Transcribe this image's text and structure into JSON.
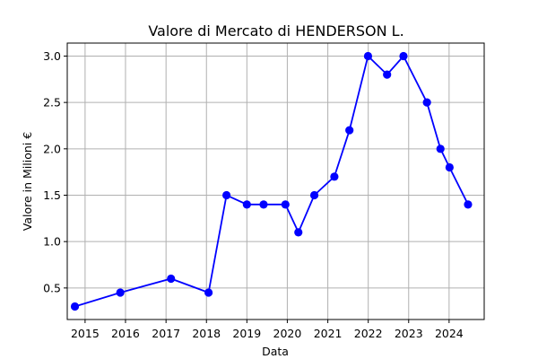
{
  "chart_data": {
    "type": "line",
    "title": "Valore di Mercato di HENDERSON L.",
    "xlabel": "Data",
    "ylabel": "Valore in Milioni €",
    "xlim": [
      "2014-07-24",
      "2024-11-13"
    ],
    "ylim": [
      0.16,
      3.14
    ],
    "x_ticks": [
      "2015",
      "2016",
      "2017",
      "2018",
      "2019",
      "2020",
      "2021",
      "2022",
      "2023",
      "2024"
    ],
    "y_ticks": [
      "0.5",
      "1.0",
      "1.5",
      "2.0",
      "2.5",
      "3.0"
    ],
    "grid": true,
    "series": [
      {
        "color": "#0000ff",
        "marker": "circle",
        "points": [
          {
            "x": "2014-10-01",
            "y": 0.3
          },
          {
            "x": "2015-11-15",
            "y": 0.45
          },
          {
            "x": "2017-02-15",
            "y": 0.6
          },
          {
            "x": "2018-01-20",
            "y": 0.45
          },
          {
            "x": "2018-07-01",
            "y": 1.5
          },
          {
            "x": "2019-01-01",
            "y": 1.4
          },
          {
            "x": "2019-06-01",
            "y": 1.4
          },
          {
            "x": "2019-12-15",
            "y": 1.4
          },
          {
            "x": "2020-04-10",
            "y": 1.1
          },
          {
            "x": "2020-09-01",
            "y": 1.5
          },
          {
            "x": "2021-03-01",
            "y": 1.7
          },
          {
            "x": "2021-07-15",
            "y": 2.2
          },
          {
            "x": "2021-12-30",
            "y": 3.0
          },
          {
            "x": "2022-06-20",
            "y": 2.8
          },
          {
            "x": "2022-11-15",
            "y": 3.0
          },
          {
            "x": "2023-06-15",
            "y": 2.5
          },
          {
            "x": "2023-10-15",
            "y": 2.0
          },
          {
            "x": "2024-01-05",
            "y": 1.8
          },
          {
            "x": "2024-06-20",
            "y": 1.4
          }
        ]
      }
    ]
  }
}
